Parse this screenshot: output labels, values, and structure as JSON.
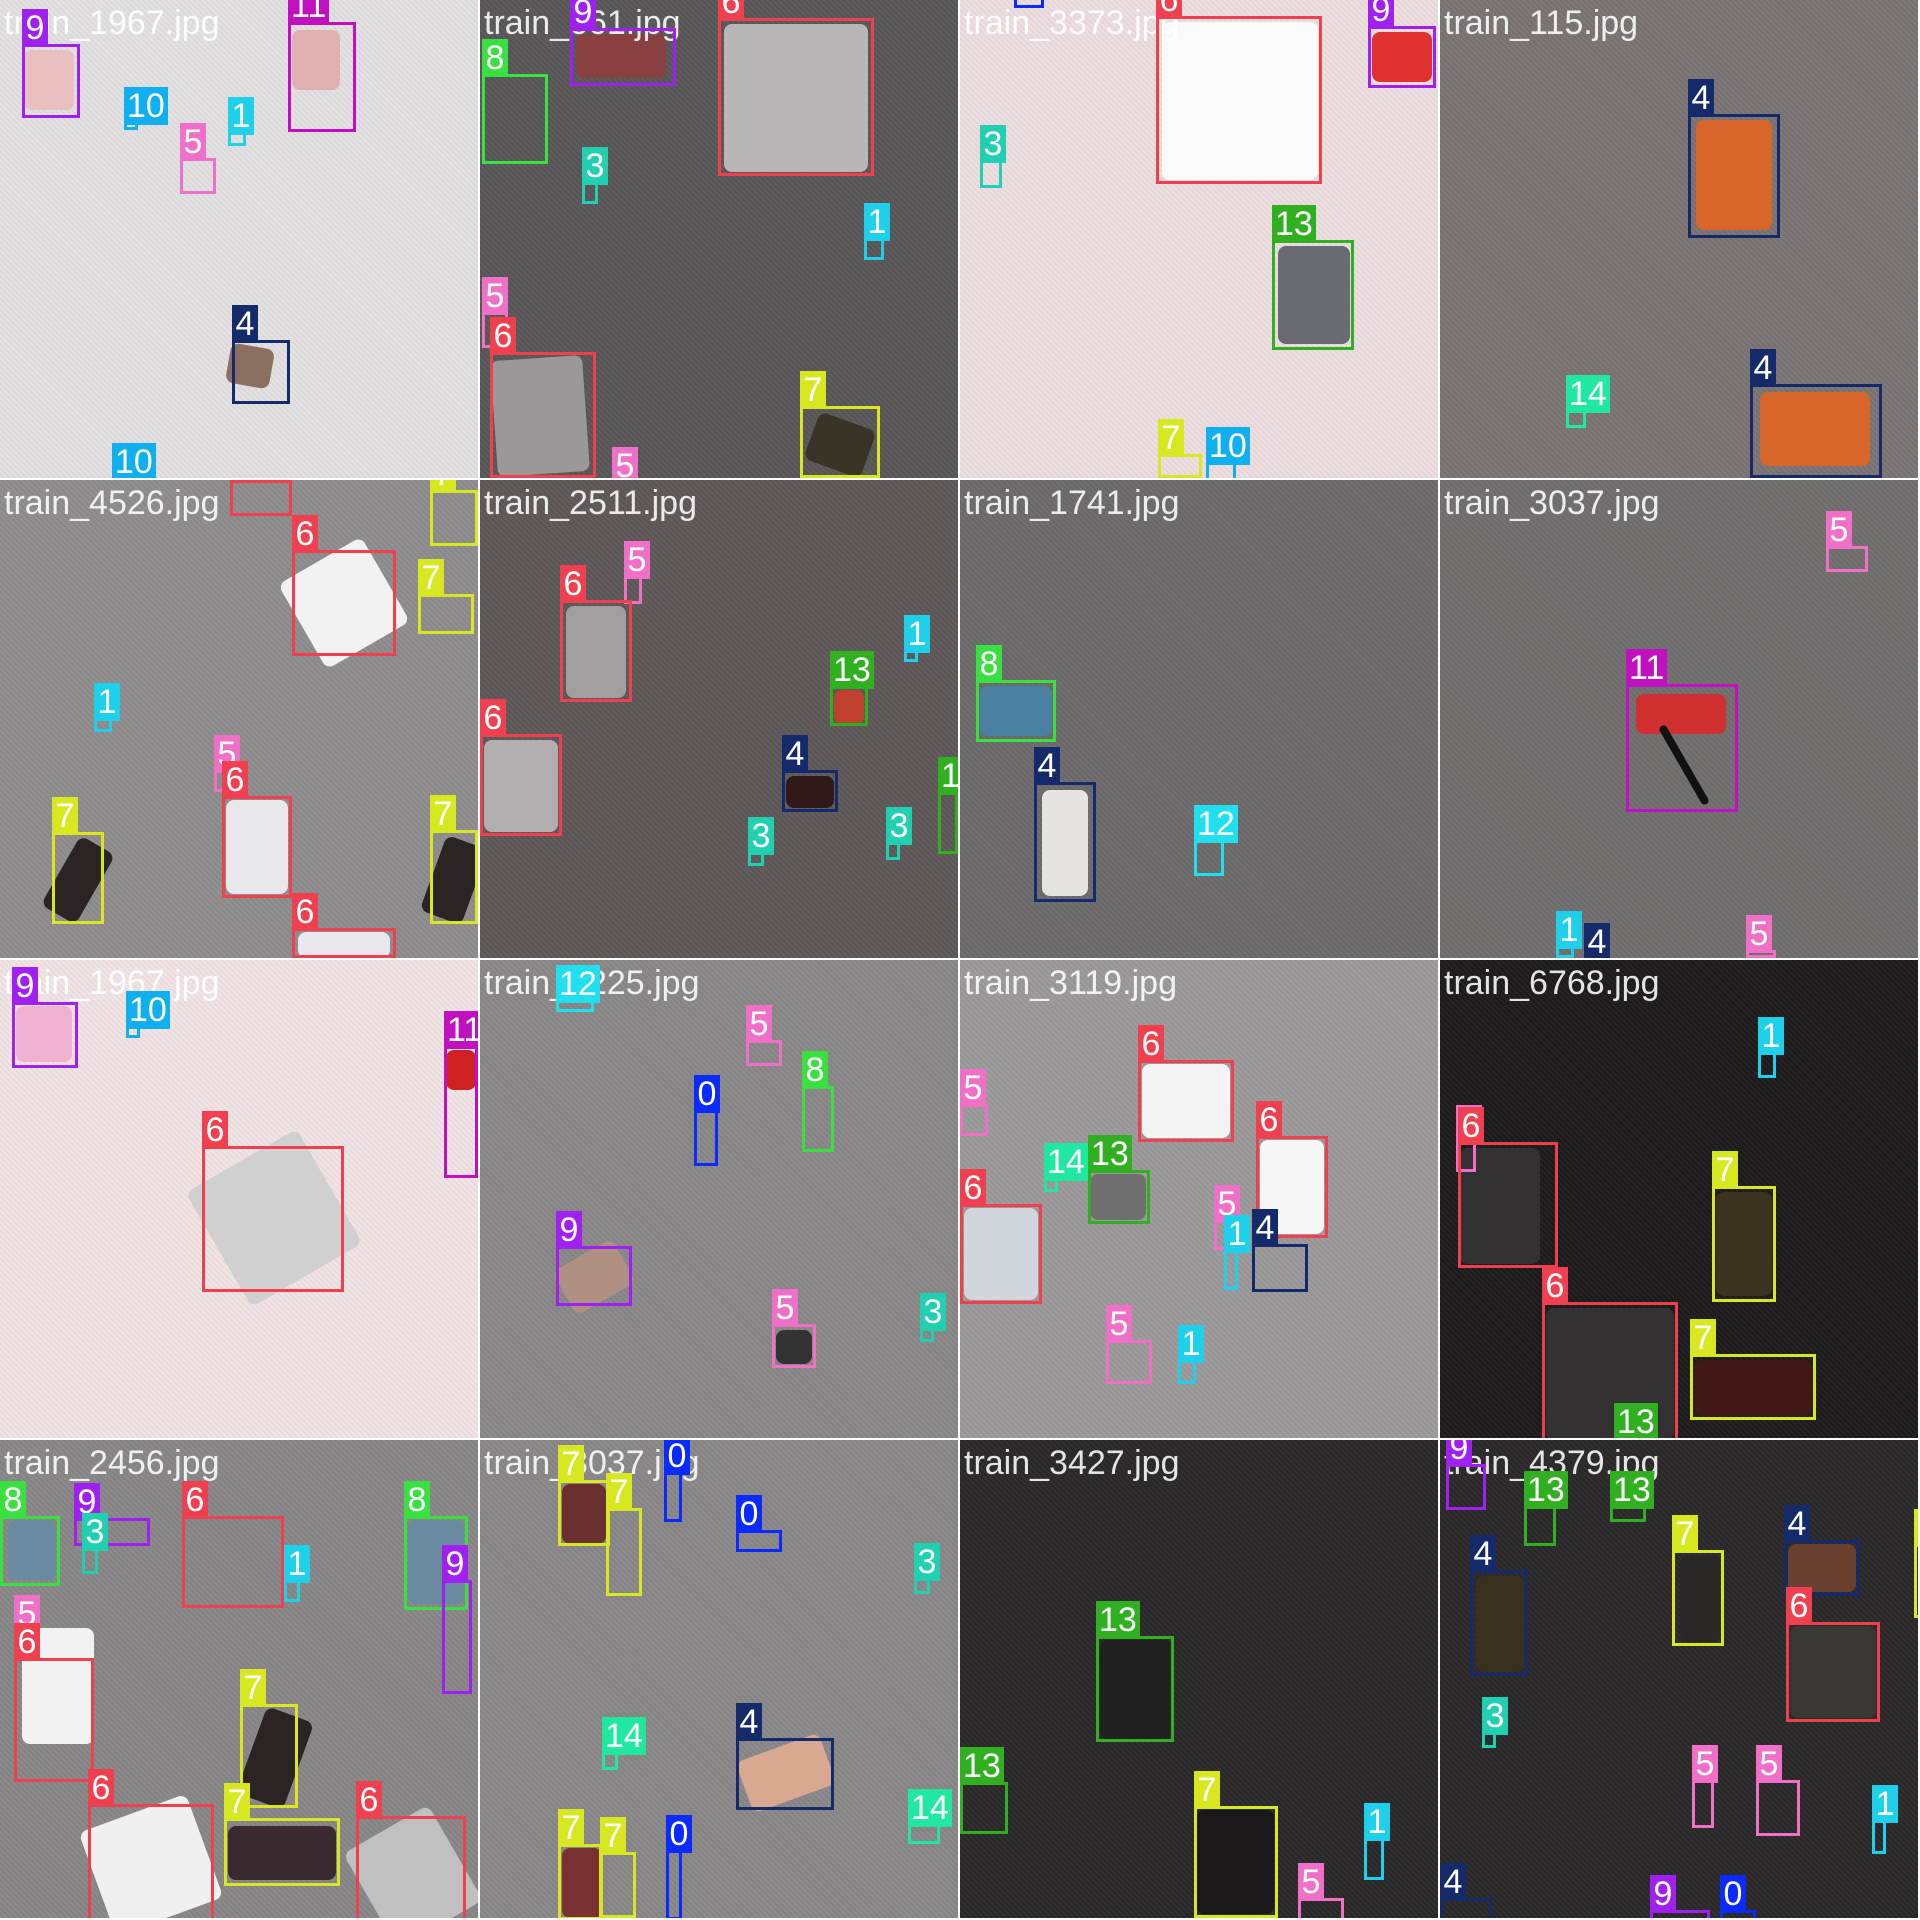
{
  "mosaic": {
    "grid": "4x4",
    "class_colors": {
      "0": "#0a2aff",
      "1": "#1fd0ea",
      "3": "#20d0b0",
      "4": "#142a6a",
      "5": "#f070c8",
      "6": "#f04050",
      "7": "#d8e820",
      "8": "#38e040",
      "9": "#a020f0",
      "10": "#10b0f0",
      "11": "#c010c0",
      "12": "#20e0f0",
      "13": "#30b020",
      "14": "#20e8a0"
    },
    "tiles": [
      {
        "filename": "train_1967.jpg",
        "background": "#e2e0e0",
        "boxes": [
          {
            "cls": "9"
          },
          {
            "cls": "11"
          },
          {
            "cls": "10"
          },
          {
            "cls": "1"
          },
          {
            "cls": "5"
          },
          {
            "cls": "4"
          },
          {
            "cls": "10"
          }
        ]
      },
      {
        "filename": "train_661.jpg",
        "background": "#595757",
        "boxes": [
          {
            "cls": "8"
          },
          {
            "cls": "9"
          },
          {
            "cls": "6"
          },
          {
            "cls": "3"
          },
          {
            "cls": "1"
          },
          {
            "cls": "5"
          },
          {
            "cls": "6"
          },
          {
            "cls": "7"
          },
          {
            "cls": "5"
          }
        ]
      },
      {
        "filename": "train_3373.jpg",
        "background": "#ecdede",
        "boxes": [
          {
            "cls": "0"
          },
          {
            "cls": "6"
          },
          {
            "cls": "9"
          },
          {
            "cls": "3"
          },
          {
            "cls": "13"
          },
          {
            "cls": "7"
          },
          {
            "cls": "10"
          }
        ]
      },
      {
        "filename": "train_115.jpg",
        "background": "#7a7474",
        "boxes": [
          {
            "cls": "4"
          },
          {
            "cls": "14"
          },
          {
            "cls": "4"
          }
        ]
      },
      {
        "filename": "train_4526.jpg",
        "background": "#8e8c8c",
        "boxes": [
          {
            "cls": "6"
          },
          {
            "cls": "7"
          },
          {
            "cls": "6"
          },
          {
            "cls": "7"
          },
          {
            "cls": "1"
          },
          {
            "cls": "5"
          },
          {
            "cls": "6"
          },
          {
            "cls": "7"
          },
          {
            "cls": "7"
          },
          {
            "cls": "6"
          }
        ]
      },
      {
        "filename": "train_2511.jpg",
        "background": "#5e5858",
        "boxes": [
          {
            "cls": "5"
          },
          {
            "cls": "6"
          },
          {
            "cls": "1"
          },
          {
            "cls": "13"
          },
          {
            "cls": "6"
          },
          {
            "cls": "4"
          },
          {
            "cls": "13"
          },
          {
            "cls": "3"
          },
          {
            "cls": "3"
          }
        ]
      },
      {
        "filename": "train_1741.jpg",
        "background": "#6c6a6a",
        "boxes": [
          {
            "cls": "8"
          },
          {
            "cls": "4"
          },
          {
            "cls": "12"
          }
        ]
      },
      {
        "filename": "train_3037.jpg",
        "background": "#716e6e",
        "boxes": [
          {
            "cls": "5"
          },
          {
            "cls": "11"
          },
          {
            "cls": "1"
          },
          {
            "cls": "4"
          },
          {
            "cls": "5"
          }
        ]
      },
      {
        "filename": "train_1967.jpg",
        "background": "#f1e3e3",
        "boxes": [
          {
            "cls": "9"
          },
          {
            "cls": "10"
          },
          {
            "cls": "11"
          },
          {
            "cls": "6"
          }
        ]
      },
      {
        "filename": "train_1225.jpg",
        "background": "#898787",
        "boxes": [
          {
            "cls": "12"
          },
          {
            "cls": "5"
          },
          {
            "cls": "8"
          },
          {
            "cls": "0"
          },
          {
            "cls": "9"
          },
          {
            "cls": "5"
          },
          {
            "cls": "3"
          }
        ]
      },
      {
        "filename": "train_3119.jpg",
        "background": "#9b9999",
        "boxes": [
          {
            "cls": "6"
          },
          {
            "cls": "5"
          },
          {
            "cls": "14"
          },
          {
            "cls": "13"
          },
          {
            "cls": "6"
          },
          {
            "cls": "6"
          },
          {
            "cls": "5"
          },
          {
            "cls": "4"
          },
          {
            "cls": "1"
          },
          {
            "cls": "5"
          },
          {
            "cls": "1"
          }
        ]
      },
      {
        "filename": "train_6768.jpg",
        "background": "#1d1b1b",
        "boxes": [
          {
            "cls": "1"
          },
          {
            "cls": "5"
          },
          {
            "cls": "6"
          },
          {
            "cls": "7"
          },
          {
            "cls": "6"
          },
          {
            "cls": "7"
          },
          {
            "cls": "13"
          }
        ]
      },
      {
        "filename": "train_2456.jpg",
        "background": "#888686",
        "boxes": [
          {
            "cls": "8"
          },
          {
            "cls": "9"
          },
          {
            "cls": "6"
          },
          {
            "cls": "8"
          },
          {
            "cls": "3"
          },
          {
            "cls": "1"
          },
          {
            "cls": "9"
          },
          {
            "cls": "5"
          },
          {
            "cls": "6"
          },
          {
            "cls": "7"
          },
          {
            "cls": "6"
          },
          {
            "cls": "7"
          },
          {
            "cls": "6"
          }
        ]
      },
      {
        "filename": "train_3037.jpg",
        "background": "#898787",
        "boxes": [
          {
            "cls": "7"
          },
          {
            "cls": "7"
          },
          {
            "cls": "0"
          },
          {
            "cls": "0"
          },
          {
            "cls": "3"
          },
          {
            "cls": "4"
          },
          {
            "cls": "14"
          },
          {
            "cls": "7"
          },
          {
            "cls": "7"
          },
          {
            "cls": "0"
          },
          {
            "cls": "14"
          }
        ]
      },
      {
        "filename": "train_3427.jpg",
        "background": "#2a2828",
        "boxes": [
          {
            "cls": "13"
          },
          {
            "cls": "13"
          },
          {
            "cls": "7"
          },
          {
            "cls": "5"
          },
          {
            "cls": "1"
          }
        ]
      },
      {
        "filename": "train_4379.jpg",
        "background": "#2a2828",
        "boxes": [
          {
            "cls": "9"
          },
          {
            "cls": "13"
          },
          {
            "cls": "13"
          },
          {
            "cls": "7"
          },
          {
            "cls": "4"
          },
          {
            "cls": "4"
          },
          {
            "cls": "7"
          },
          {
            "cls": "6"
          },
          {
            "cls": "3"
          },
          {
            "cls": "5"
          },
          {
            "cls": "5"
          },
          {
            "cls": "1"
          },
          {
            "cls": "4"
          },
          {
            "cls": "9"
          },
          {
            "cls": "0"
          }
        ]
      }
    ]
  }
}
